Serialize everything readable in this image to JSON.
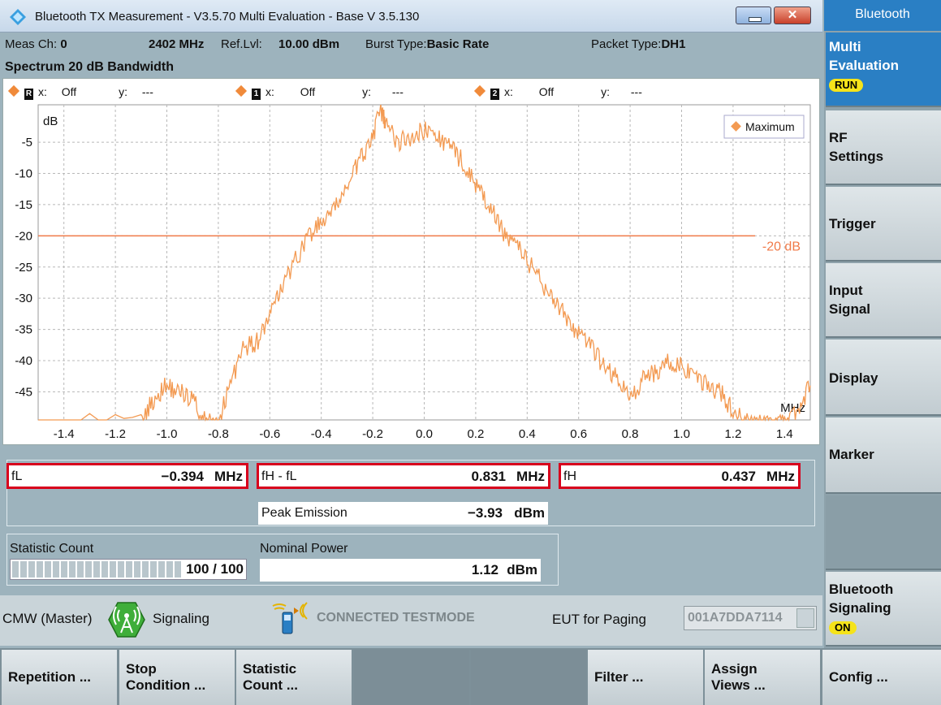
{
  "window": {
    "title": "Bluetooth TX Measurement  - V3.5.70 Multi Evaluation - Base V 3.5.130",
    "close_glyph": "✕"
  },
  "header": {
    "meas_ch_label": "Meas Ch:",
    "meas_ch_value": "0",
    "freq": "2402",
    "freq_unit": "MHz",
    "ref_lvl_label": "Ref.Lvl:",
    "ref_lvl_value": "10.00",
    "ref_lvl_unit": "dBm",
    "burst_label": "Burst Type:",
    "burst_value": "Basic Rate",
    "packet_label": "Packet Type:",
    "packet_value": "DH1",
    "subtitle": "Spectrum 20 dB Bandwidth"
  },
  "markers": [
    {
      "id": "R",
      "x_label": "x:",
      "x_value": "Off",
      "y_label": "y:",
      "y_value": "---"
    },
    {
      "id": "1",
      "x_label": "x:",
      "x_value": "Off",
      "y_label": "y:",
      "y_value": "---"
    },
    {
      "id": "2",
      "x_label": "x:",
      "x_value": "Off",
      "y_label": "y:",
      "y_value": "---"
    }
  ],
  "chart_data": {
    "type": "line",
    "ylabel": "dB",
    "xlabel": "MHz",
    "xlim": [
      -1.5,
      1.5
    ],
    "ylim": [
      -49.5,
      1
    ],
    "xticks": [
      "-1.4",
      "-1.2",
      "-1.0",
      "-0.8",
      "-0.6",
      "-0.4",
      "-0.2",
      "0.0",
      "0.2",
      "0.4",
      "0.6",
      "0.8",
      "1.0",
      "1.2",
      "1.4"
    ],
    "yticks": [
      "-5",
      "-10",
      "-15",
      "-20",
      "-25",
      "-30",
      "-35",
      "-40",
      "-45"
    ],
    "grid": true,
    "legend": "top-right",
    "series": [
      {
        "name": "Maximum",
        "color": "#f39a52",
        "x": [
          -1.5,
          -1.1,
          -1.05,
          -1.0,
          -0.95,
          -0.9,
          -0.85,
          -0.8,
          -0.75,
          -0.7,
          -0.65,
          -0.6,
          -0.55,
          -0.5,
          -0.45,
          -0.4,
          -0.35,
          -0.3,
          -0.25,
          -0.2,
          -0.17,
          -0.15,
          -0.1,
          -0.05,
          0.0,
          0.05,
          0.1,
          0.15,
          0.2,
          0.25,
          0.3,
          0.35,
          0.4,
          0.45,
          0.5,
          0.55,
          0.6,
          0.65,
          0.7,
          0.75,
          0.8,
          0.85,
          0.9,
          0.95,
          1.0,
          1.05,
          1.1,
          1.15,
          1.2,
          1.25,
          1.3,
          1.35,
          1.4,
          1.45,
          1.5
        ],
        "y": [
          -50,
          -50,
          -46,
          -44,
          -45,
          -46,
          -50,
          -50,
          -43,
          -38,
          -37,
          -33,
          -28,
          -24,
          -20,
          -18,
          -16,
          -12,
          -8,
          -4,
          0,
          -2,
          -5,
          -4,
          -3,
          -4,
          -6,
          -8,
          -12,
          -15,
          -19,
          -21,
          -24,
          -27,
          -30,
          -33,
          -36,
          -38,
          -41,
          -43,
          -46,
          -43,
          -42,
          -40,
          -41,
          -43,
          -44,
          -45,
          -48,
          -50,
          -50,
          -50,
          -50,
          -48,
          -44
        ]
      }
    ],
    "threshold": {
      "value": -20,
      "label": "-20 dB",
      "color": "#f07a48"
    }
  },
  "results": {
    "fl": {
      "label": "fL",
      "value": "−0.394",
      "unit": "MHz"
    },
    "fh_fl": {
      "label": "fH - fL",
      "value": "0.831",
      "unit": "MHz"
    },
    "fh": {
      "label": "fH",
      "value": "0.437",
      "unit": "MHz"
    },
    "peak": {
      "label": "Peak Emission",
      "value": "−3.93",
      "unit": "dBm"
    }
  },
  "statistic": {
    "label": "Statistic Count",
    "text": "100 / 100",
    "progress": 1.0
  },
  "nominal": {
    "label": "Nominal Power",
    "value": "1.12",
    "unit": "dBm"
  },
  "status": {
    "cmw": "CMW (Master)",
    "signaling": "Signaling",
    "testmode": "CONNECTED TESTMODE",
    "eut_label": "EUT for Paging",
    "eut_value": "001A7DDA7114"
  },
  "right_panel": {
    "header": "Bluetooth",
    "keys": [
      {
        "line1": "Multi",
        "line2": "Evaluation",
        "badge": "RUN"
      },
      {
        "line1": "RF",
        "line2": "Settings"
      },
      {
        "line1": "Trigger",
        "line2": ""
      },
      {
        "line1": "Input",
        "line2": "Signal"
      },
      {
        "line1": "Display",
        "line2": ""
      },
      {
        "line1": "Marker",
        "line2": ""
      },
      {
        "line1": "Bluetooth",
        "line2": "Signaling",
        "badge": "ON"
      }
    ]
  },
  "bottom_keys": [
    {
      "line1": "Repetition ...",
      "line2": ""
    },
    {
      "line1": "Stop",
      "line2": "Condition ..."
    },
    {
      "line1": "Statistic",
      "line2": "Count ..."
    },
    {
      "line1": "",
      "line2": ""
    },
    {
      "line1": "",
      "line2": ""
    },
    {
      "line1": "Filter ...",
      "line2": ""
    },
    {
      "line1": "Assign",
      "line2": "Views ..."
    },
    {
      "line1": "Config ...",
      "line2": ""
    }
  ],
  "colors": {
    "accent": "#2a7fc4",
    "highlight_border": "#d8001c",
    "trace": "#f39a52",
    "badge": "#f5e31a"
  }
}
